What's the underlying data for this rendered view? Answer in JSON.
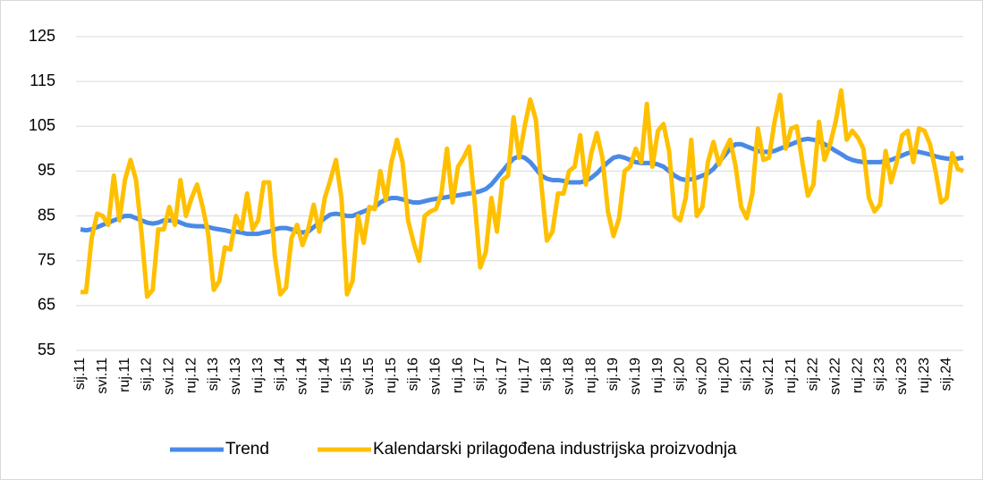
{
  "chart_data": {
    "type": "line",
    "categories": [
      "sij.11",
      null,
      null,
      null,
      "svi.11",
      null,
      null,
      null,
      "ruj.11",
      null,
      null,
      null,
      "sij.12",
      null,
      null,
      null,
      "svi.12",
      null,
      null,
      null,
      "ruj.12",
      null,
      null,
      null,
      "sij.13",
      null,
      null,
      null,
      "svi.13",
      null,
      null,
      null,
      "ruj.13",
      null,
      null,
      null,
      "sij.14",
      null,
      null,
      null,
      "svi.14",
      null,
      null,
      null,
      "ruj.14",
      null,
      null,
      null,
      "sij.15",
      null,
      null,
      null,
      "svi.15",
      null,
      null,
      null,
      "ruj.15",
      null,
      null,
      null,
      "sij.16",
      null,
      null,
      null,
      "svi.16",
      null,
      null,
      null,
      "ruj.16",
      null,
      null,
      null,
      "sij.17",
      null,
      null,
      null,
      "svi.17",
      null,
      null,
      null,
      "ruj.17",
      null,
      null,
      null,
      "sij.18",
      null,
      null,
      null,
      "svi.18",
      null,
      null,
      null,
      "ruj.18",
      null,
      null,
      null,
      "sij.19",
      null,
      null,
      null,
      "svi.19",
      null,
      null,
      null,
      "ruj.19",
      null,
      null,
      null,
      "sij.20",
      null,
      null,
      null,
      "svi.20",
      null,
      null,
      null,
      "ruj.20",
      null,
      null,
      null,
      "sij.21",
      null,
      null,
      null,
      "svi.21",
      null,
      null,
      null,
      "ruj.21",
      null,
      null,
      null,
      "sij.22",
      null,
      null,
      null,
      "svi.22",
      null,
      null,
      null,
      "ruj.22",
      null,
      null,
      null,
      "sij.23",
      null,
      null,
      null,
      "svi.23",
      null,
      null,
      null,
      "ruj.23",
      null,
      null,
      null,
      "sij.24",
      null,
      null,
      null
    ],
    "series": [
      {
        "name": "Trend",
        "color": "#4a8ae6",
        "values": [
          82,
          81.8,
          82,
          82.5,
          83,
          83.5,
          84,
          84.5,
          85,
          85,
          84.5,
          84,
          83.5,
          83.3,
          83.5,
          84,
          84,
          84,
          83.5,
          83,
          82.8,
          82.7,
          82.7,
          82.5,
          82.2,
          82,
          81.8,
          81.5,
          81.5,
          81.3,
          81,
          81,
          81,
          81.3,
          81.5,
          82,
          82.3,
          82.3,
          82,
          81.5,
          81.3,
          81.5,
          82.5,
          83.5,
          84.5,
          85.3,
          85.5,
          85.3,
          85,
          85,
          85.5,
          86,
          86.5,
          87,
          88,
          88.7,
          89,
          89,
          88.7,
          88.3,
          88,
          88,
          88.3,
          88.6,
          88.8,
          89,
          89.2,
          89.4,
          89.6,
          89.8,
          90,
          90.2,
          90.5,
          91,
          92,
          93.5,
          95,
          96.5,
          97.8,
          98.3,
          98,
          97,
          95.5,
          94,
          93.3,
          93,
          93,
          92.8,
          92.5,
          92.5,
          92.5,
          92.8,
          93.5,
          94.5,
          95.8,
          97,
          98,
          98.3,
          98,
          97.5,
          97,
          96.8,
          96.8,
          96.8,
          96.5,
          96,
          95,
          94,
          93.3,
          93,
          93.2,
          93.5,
          94,
          94.5,
          95.5,
          97,
          98.5,
          100,
          101,
          101,
          100.5,
          100,
          99.5,
          99.3,
          99.3,
          99.5,
          100,
          100.5,
          101,
          101.5,
          102,
          102.2,
          102,
          101.7,
          101,
          100.3,
          99.5,
          98.8,
          98,
          97.5,
          97.2,
          97,
          97,
          97,
          97,
          97.2,
          97.5,
          98,
          98.5,
          99,
          99.3,
          99.3,
          99,
          98.7,
          98.3,
          98,
          97.8,
          97.7,
          97.8,
          98
        ]
      },
      {
        "name": "Kalendarski prilagođena industrijska proizvodnja",
        "color": "#ffc000",
        "values": [
          68,
          68,
          80,
          85.5,
          85,
          83,
          94,
          84,
          93,
          97.5,
          93,
          81,
          67,
          68.5,
          82,
          82,
          87,
          83,
          93,
          85,
          89,
          92,
          87,
          81,
          68.5,
          70.5,
          78,
          77.5,
          85,
          82,
          90,
          82,
          84,
          92.5,
          92.5,
          76,
          67.5,
          69,
          80,
          83,
          78.5,
          82,
          87.5,
          81.5,
          89,
          93,
          97.5,
          89,
          67.5,
          70.5,
          85,
          79,
          87,
          86.5,
          95,
          88.5,
          97,
          102,
          97,
          84,
          79,
          75,
          85,
          86,
          86.5,
          90,
          100,
          88,
          96,
          98,
          100.5,
          88,
          73.5,
          77,
          89,
          81.5,
          93,
          94,
          107,
          98,
          105,
          111,
          106.5,
          92,
          79.5,
          81.5,
          90,
          90,
          95,
          96,
          103,
          92,
          99,
          103.5,
          98,
          86,
          80.5,
          84.5,
          95,
          96,
          100,
          97,
          110,
          96,
          104,
          105.5,
          99.5,
          85,
          84,
          89,
          102,
          85,
          87,
          97,
          101.5,
          96.5,
          99.5,
          102,
          96,
          87,
          84.5,
          90,
          104.5,
          97.5,
          98,
          106,
          112,
          100,
          104.5,
          105,
          97,
          89.5,
          92,
          106,
          97.5,
          101,
          106,
          113,
          102,
          104,
          102.5,
          100,
          89,
          86,
          87.5,
          99.5,
          92.5,
          97,
          103,
          104,
          97,
          104.5,
          104,
          101,
          95,
          88,
          89,
          99,
          95.5,
          95
        ]
      }
    ],
    "ylim": [
      55,
      125
    ],
    "yticks": [
      55,
      65,
      75,
      85,
      95,
      105,
      115,
      125
    ],
    "grid": true,
    "legend": "bottom"
  }
}
